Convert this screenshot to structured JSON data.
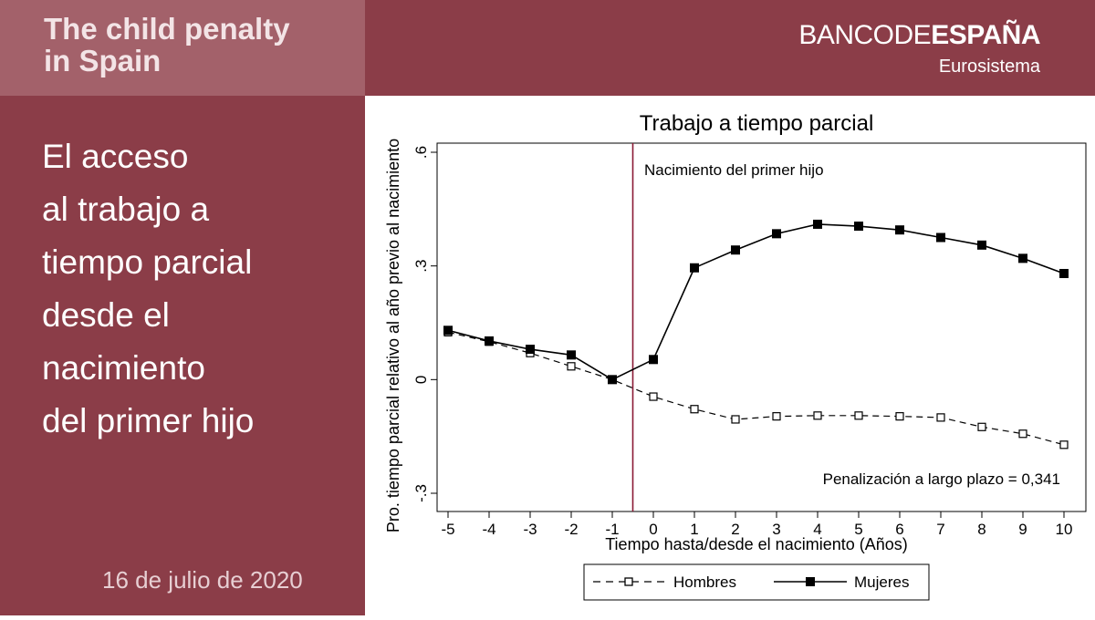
{
  "header": {
    "title_lines": [
      "The child penalty",
      "in Spain"
    ],
    "logo": {
      "part1": "BANCO",
      "part2": "DE",
      "part3": "ESPAÑA",
      "subtitle": "Eurosistema"
    }
  },
  "sidebar": {
    "heading_lines": [
      "El acceso",
      "al trabajo a",
      "tiempo parcial",
      "desde el",
      "nacimiento",
      "del primer hijo"
    ],
    "date": "16 de julio de 2020"
  },
  "colors": {
    "brand": "#8b3d48",
    "brand_light": "#a3616a",
    "vline": "#8b1a35"
  },
  "chart_data": {
    "type": "line",
    "title": "Trabajo a tiempo parcial",
    "xlabel": "Tiempo hasta/desde el nacimiento (Años)",
    "ylabel": "Pro. tiempo parcial relativo al año previo al nacimiento",
    "x": [
      -5,
      -4,
      -3,
      -2,
      -1,
      0,
      1,
      2,
      3,
      4,
      5,
      6,
      7,
      8,
      9,
      10
    ],
    "xlim": [
      -5,
      10
    ],
    "ylim": [
      -0.3,
      0.6
    ],
    "yticks": [
      -0.3,
      0,
      0.3,
      0.6
    ],
    "ytick_labels": [
      "-.3",
      "0",
      ".3",
      ".6"
    ],
    "series": [
      {
        "name": "Hombres",
        "style": "dashed",
        "marker": "hollow-square",
        "values": [
          0.125,
          0.1,
          0.07,
          0.035,
          0.0,
          -0.045,
          -0.078,
          -0.105,
          -0.097,
          -0.095,
          -0.095,
          -0.097,
          -0.1,
          -0.125,
          -0.143,
          -0.172
        ]
      },
      {
        "name": "Mujeres",
        "style": "solid",
        "marker": "filled-square",
        "values": [
          0.13,
          0.102,
          0.08,
          0.065,
          0.0,
          0.053,
          0.295,
          0.342,
          0.385,
          0.41,
          0.405,
          0.395,
          0.375,
          0.355,
          0.32,
          0.28
        ]
      }
    ],
    "vline": {
      "x": -0.5,
      "label": "Nacimiento del primer hijo"
    },
    "annotation": "Penalización a largo plazo = 0,341",
    "legend_position": "bottom",
    "grid": false
  }
}
